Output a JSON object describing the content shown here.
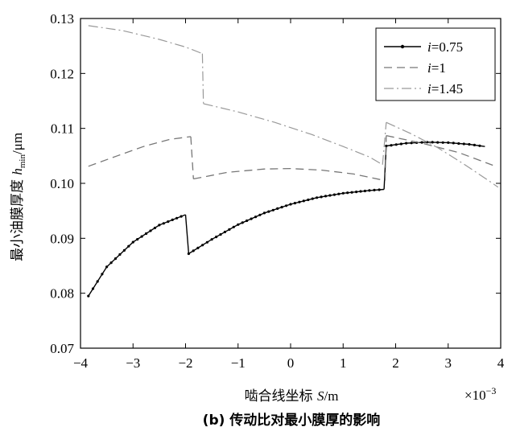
{
  "chart_data": {
    "type": "line",
    "xlabel_pre": "啮合线坐标 ",
    "xlabel_var": "S",
    "xlabel_post": "/m",
    "x_multiplier_base": "×10",
    "x_multiplier_exp": "−3",
    "ylabel_pre": "最小油膜厚度 ",
    "ylabel_var": "h",
    "ylabel_sub": "min",
    "ylabel_post": "/μm",
    "caption": "(b) 传动比对最小膜厚的影响",
    "xlim": [
      -4,
      4
    ],
    "ylim": [
      0.07,
      0.13
    ],
    "xticks": [
      -4,
      -3,
      -2,
      -1,
      0,
      1,
      2,
      3,
      4
    ],
    "xtick_labels": [
      "−4",
      "−3",
      "−2",
      "−1",
      "0",
      "1",
      "2",
      "3",
      "4"
    ],
    "yticks": [
      0.07,
      0.08,
      0.09,
      0.1,
      0.11,
      0.12,
      0.13
    ],
    "ytick_labels": [
      "0.07",
      "0.08",
      "0.09",
      "0.10",
      "0.11",
      "0.12",
      "0.13"
    ],
    "legend_position": "top-right",
    "series": [
      {
        "name_var": "i",
        "name_val": "=0.75",
        "color": "#000000",
        "style": "solid-dots",
        "segments": [
          [
            [
              -3.85,
              0.0795
            ],
            [
              -3.5,
              0.0848
            ],
            [
              -3.0,
              0.0893
            ],
            [
              -2.5,
              0.0924
            ],
            [
              -2.0,
              0.0943
            ]
          ],
          [
            [
              -2.0,
              0.0943
            ],
            [
              -1.94,
              0.0872
            ]
          ],
          [
            [
              -1.94,
              0.0872
            ],
            [
              -1.5,
              0.0898
            ],
            [
              -1.0,
              0.0925
            ],
            [
              -0.5,
              0.0946
            ],
            [
              0.0,
              0.0962
            ],
            [
              0.5,
              0.0974
            ],
            [
              1.0,
              0.0982
            ],
            [
              1.5,
              0.0987
            ],
            [
              1.78,
              0.0989
            ]
          ],
          [
            [
              1.78,
              0.0989
            ],
            [
              1.82,
              0.1068
            ]
          ],
          [
            [
              1.82,
              0.1068
            ],
            [
              2.2,
              0.1073
            ],
            [
              2.6,
              0.1075
            ],
            [
              3.0,
              0.1074
            ],
            [
              3.4,
              0.1071
            ],
            [
              3.7,
              0.1067
            ]
          ]
        ]
      },
      {
        "name_var": "i",
        "name_val": "=1",
        "color": "#777777",
        "style": "dashed",
        "segments": [
          [
            [
              -3.85,
              0.1031
            ],
            [
              -3.3,
              0.105
            ],
            [
              -2.8,
              0.1067
            ],
            [
              -2.3,
              0.108
            ],
            [
              -1.9,
              0.1085
            ]
          ],
          [
            [
              -1.9,
              0.1085
            ],
            [
              -1.85,
              0.1008
            ]
          ],
          [
            [
              -1.85,
              0.1008
            ],
            [
              -1.2,
              0.102
            ],
            [
              -0.5,
              0.1026
            ],
            [
              0.0,
              0.1027
            ],
            [
              0.6,
              0.1024
            ],
            [
              1.2,
              0.1017
            ],
            [
              1.8,
              0.1005
            ]
          ],
          [
            [
              1.8,
              0.1005
            ],
            [
              1.82,
              0.1087
            ]
          ],
          [
            [
              1.82,
              0.1087
            ],
            [
              2.5,
              0.1073
            ],
            [
              3.2,
              0.1056
            ],
            [
              3.85,
              0.1033
            ]
          ]
        ]
      },
      {
        "name_var": "i",
        "name_val": "=1.45",
        "color": "#999999",
        "style": "dashdot",
        "segments": [
          [
            [
              -3.85,
              0.1287
            ],
            [
              -3.2,
              0.1278
            ],
            [
              -2.5,
              0.1262
            ],
            [
              -2.0,
              0.1248
            ],
            [
              -1.68,
              0.1236
            ]
          ],
          [
            [
              -1.68,
              0.1236
            ],
            [
              -1.66,
              0.1145
            ]
          ],
          [
            [
              -1.66,
              0.1145
            ],
            [
              -1.0,
              0.113
            ],
            [
              -0.3,
              0.1111
            ],
            [
              0.4,
              0.1089
            ],
            [
              1.0,
              0.1067
            ],
            [
              1.5,
              0.1048
            ],
            [
              1.75,
              0.1034
            ]
          ],
          [
            [
              1.75,
              0.1034
            ],
            [
              1.82,
              0.1111
            ]
          ],
          [
            [
              1.82,
              0.1111
            ],
            [
              2.3,
              0.109
            ],
            [
              2.8,
              0.1065
            ],
            [
              3.3,
              0.1035
            ],
            [
              3.8,
              0.1003
            ],
            [
              3.95,
              0.0993
            ]
          ]
        ]
      }
    ]
  }
}
